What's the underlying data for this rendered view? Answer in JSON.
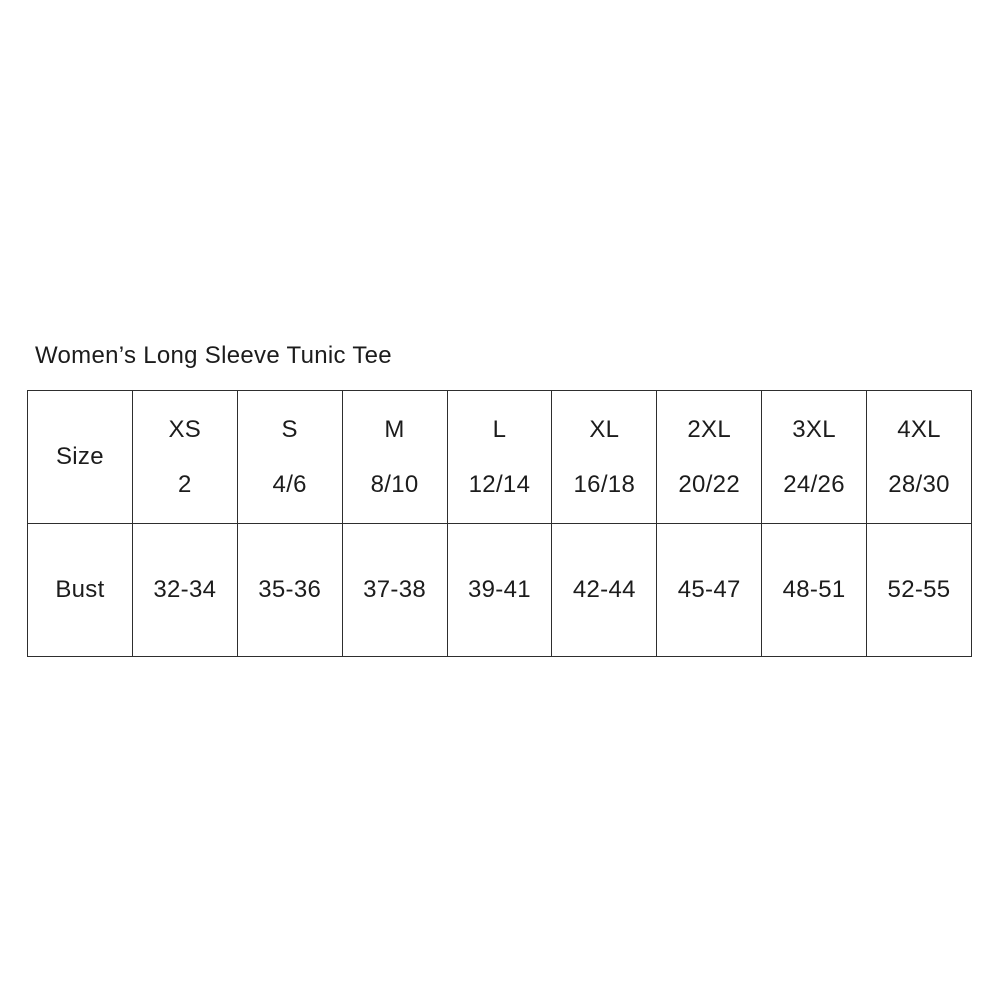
{
  "title": "Women’s Long Sleeve Tunic Tee",
  "colors": {
    "background": "#ffffff",
    "text": "#1c1c1c",
    "table_border": "#2e2e2e"
  },
  "chart_data": {
    "type": "table",
    "title": "Women’s Long Sleeve Tunic Tee",
    "row_labels": [
      "Size",
      "Bust"
    ],
    "columns": [
      {
        "size": "XS",
        "numeric": "2",
        "bust": "32-34"
      },
      {
        "size": "S",
        "numeric": "4/6",
        "bust": "35-36"
      },
      {
        "size": "M",
        "numeric": "8/10",
        "bust": "37-38"
      },
      {
        "size": "L",
        "numeric": "12/14",
        "bust": "39-41"
      },
      {
        "size": "XL",
        "numeric": "16/18",
        "bust": "42-44"
      },
      {
        "size": "2XL",
        "numeric": "20/22",
        "bust": "45-47"
      },
      {
        "size": "3XL",
        "numeric": "24/26",
        "bust": "48-51"
      },
      {
        "size": "4XL",
        "numeric": "28/30",
        "bust": "52-55"
      }
    ]
  }
}
